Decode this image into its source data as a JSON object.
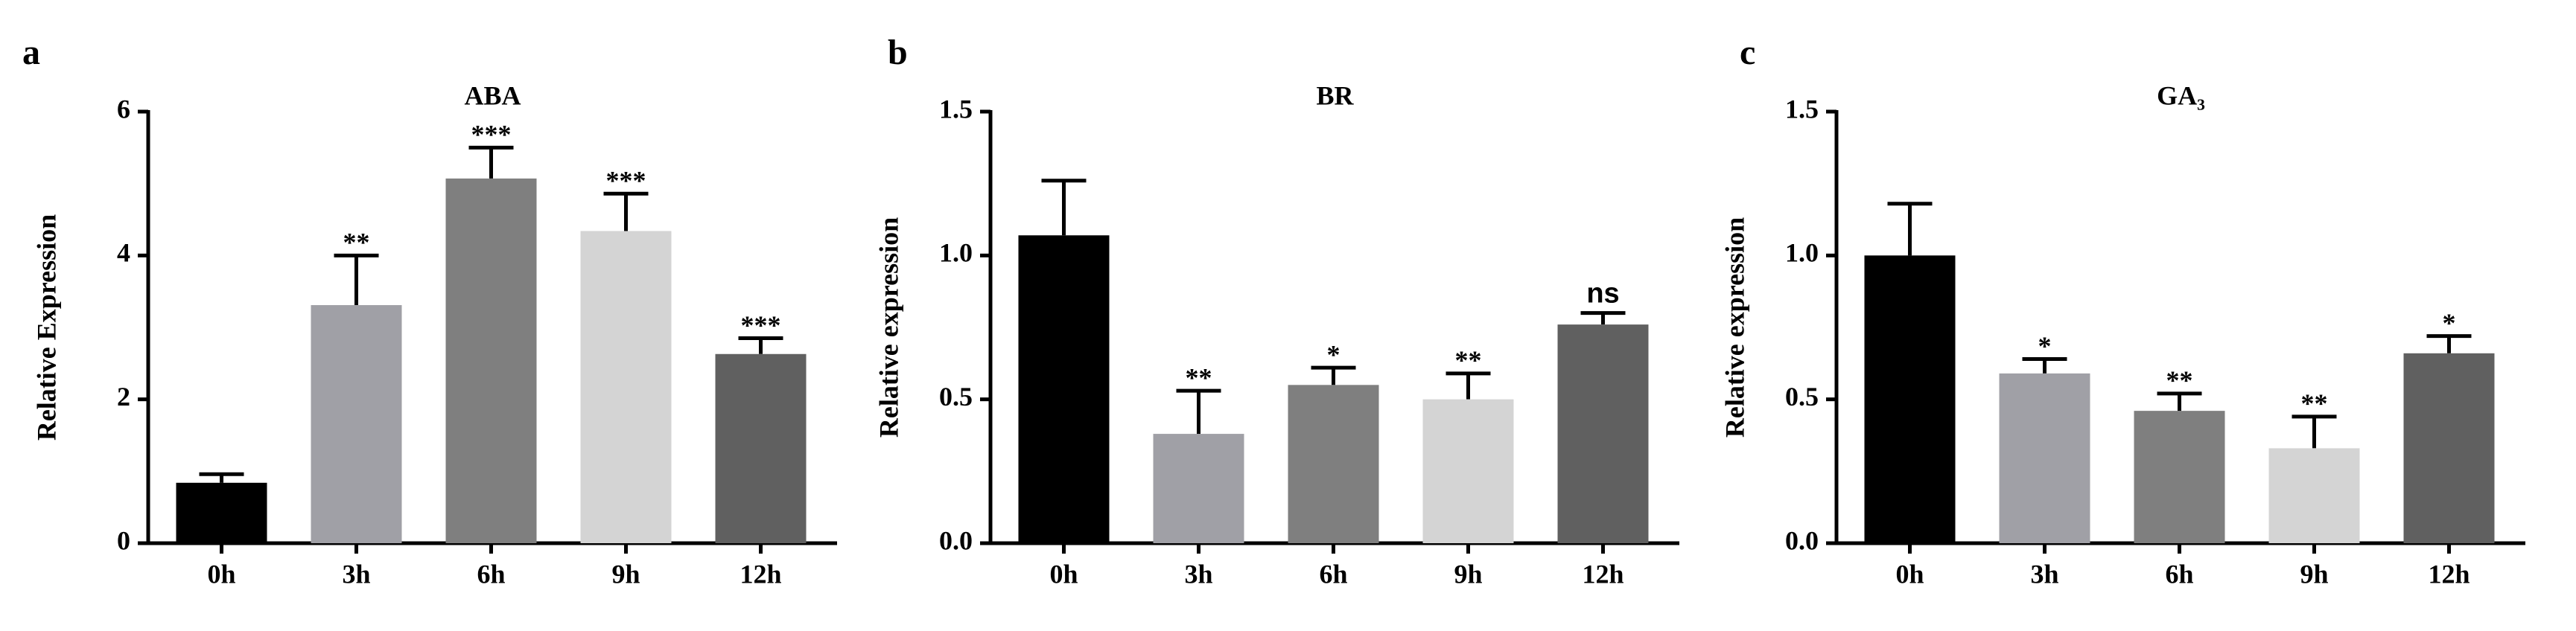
{
  "chart_data": [
    {
      "type": "bar",
      "panel": "a",
      "title": "ABA",
      "y_label": "Relative Expression",
      "categories": [
        "0h",
        "3h",
        "6h",
        "9h",
        "12h"
      ],
      "values": [
        0.84,
        3.31,
        5.07,
        4.34,
        2.63
      ],
      "errors": [
        0.12,
        0.69,
        0.43,
        0.52,
        0.22
      ],
      "annotations": [
        null,
        "**",
        "***",
        "***",
        "***"
      ],
      "colors": [
        "#000000",
        "#a0a0a6",
        "#7f7f7f",
        "#d4d4d4",
        "#606060"
      ],
      "ylim": [
        0,
        6
      ],
      "yticks": [
        0,
        2,
        4,
        6
      ]
    },
    {
      "type": "bar",
      "panel": "b",
      "title": "BR",
      "y_label": "Relative expression",
      "categories": [
        "0h",
        "3h",
        "6h",
        "9h",
        "12h"
      ],
      "values": [
        1.07,
        0.38,
        0.55,
        0.5,
        0.76
      ],
      "errors": [
        0.19,
        0.15,
        0.06,
        0.09,
        0.04
      ],
      "annotations": [
        null,
        "**",
        "*",
        "**",
        "ns"
      ],
      "colors": [
        "#000000",
        "#a0a0a6",
        "#7f7f7f",
        "#d4d4d4",
        "#606060"
      ],
      "ylim": [
        0,
        1.5
      ],
      "yticks": [
        {
          "value": 0,
          "label": "0.0"
        },
        0.5,
        {
          "value": 1,
          "label": "1.0"
        },
        1.5
      ]
    },
    {
      "type": "bar",
      "panel": "c",
      "title": "GA₃",
      "y_label": "Relative expression",
      "categories": [
        "0h",
        "3h",
        "6h",
        "9h",
        "12h"
      ],
      "values": [
        1.0,
        0.59,
        0.46,
        0.33,
        0.66
      ],
      "errors": [
        0.18,
        0.05,
        0.06,
        0.11,
        0.06
      ],
      "annotations": [
        null,
        "*",
        "**",
        "**",
        "*"
      ],
      "colors": [
        "#000000",
        "#a0a0a6",
        "#7f7f7f",
        "#d4d4d4",
        "#606060"
      ],
      "ylim": [
        0,
        1.5
      ],
      "yticks": [
        {
          "value": 0,
          "label": "0.0"
        },
        0.5,
        {
          "value": 1,
          "label": "1.0"
        },
        1.5
      ]
    }
  ]
}
